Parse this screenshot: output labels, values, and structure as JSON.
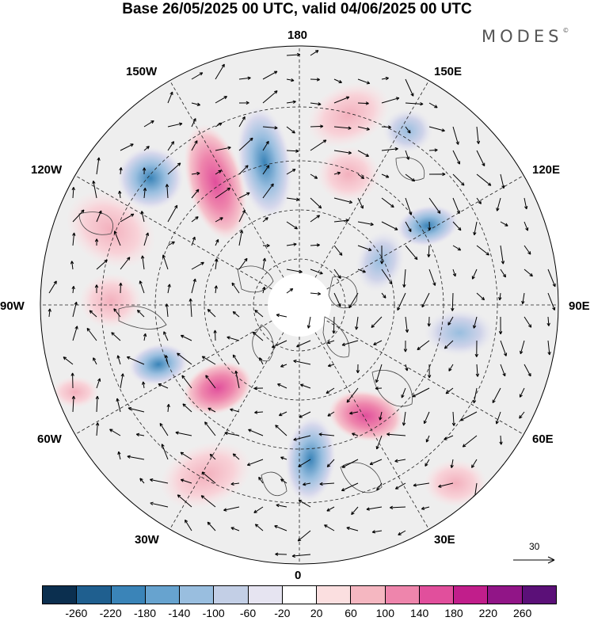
{
  "title": "Base 26/05/2025 00 UTC, valid 04/06/2025 00 UTC",
  "brand": "MODES",
  "brand_mark": "©",
  "map": {
    "projection": "north polar stereographic",
    "longitude_labels": {
      "top": "180",
      "bottom": "0",
      "left": "90W",
      "right": "90E",
      "upper_left_1": "150W",
      "upper_left_2": "120W",
      "lower_left_1": "60W",
      "lower_left_2": "30W",
      "upper_right_1": "150E",
      "upper_right_2": "120E",
      "lower_right_1": "60E",
      "lower_right_2": "30E"
    },
    "reference_vector": "30",
    "anomaly_centers": [
      {
        "lon_label": "180-150W",
        "sign": "negative",
        "strength": "strong"
      },
      {
        "lon_label": "150W-120W",
        "sign": "positive",
        "strength": "strong"
      },
      {
        "lon_label": "120W",
        "sign": "negative",
        "strength": "moderate"
      },
      {
        "lon_label": "150E",
        "sign": "negative",
        "strength": "moderate"
      },
      {
        "lon_label": "120E",
        "sign": "negative",
        "strength": "moderate"
      },
      {
        "lon_label": "60W",
        "sign": "negative",
        "strength": "moderate"
      },
      {
        "lon_label": "45W",
        "sign": "positive",
        "strength": "strong"
      },
      {
        "lon_label": "0",
        "sign": "negative",
        "strength": "strong"
      },
      {
        "lon_label": "50E",
        "sign": "positive",
        "strength": "strong"
      }
    ]
  },
  "colorbar": {
    "colors": [
      "#0b2f4f",
      "#1f5f8f",
      "#3a84b8",
      "#67a3cf",
      "#99bedf",
      "#c3cfe6",
      "#e6e4f1",
      "#ffffff",
      "#fbdfe0",
      "#f5b7c1",
      "#ee85ac",
      "#e14f9c",
      "#c11e8b",
      "#911587",
      "#5b1078"
    ],
    "ticks": [
      "-260",
      "-220",
      "-180",
      "-140",
      "-100",
      "-60",
      "-20",
      "20",
      "60",
      "100",
      "140",
      "180",
      "220",
      "260"
    ]
  }
}
